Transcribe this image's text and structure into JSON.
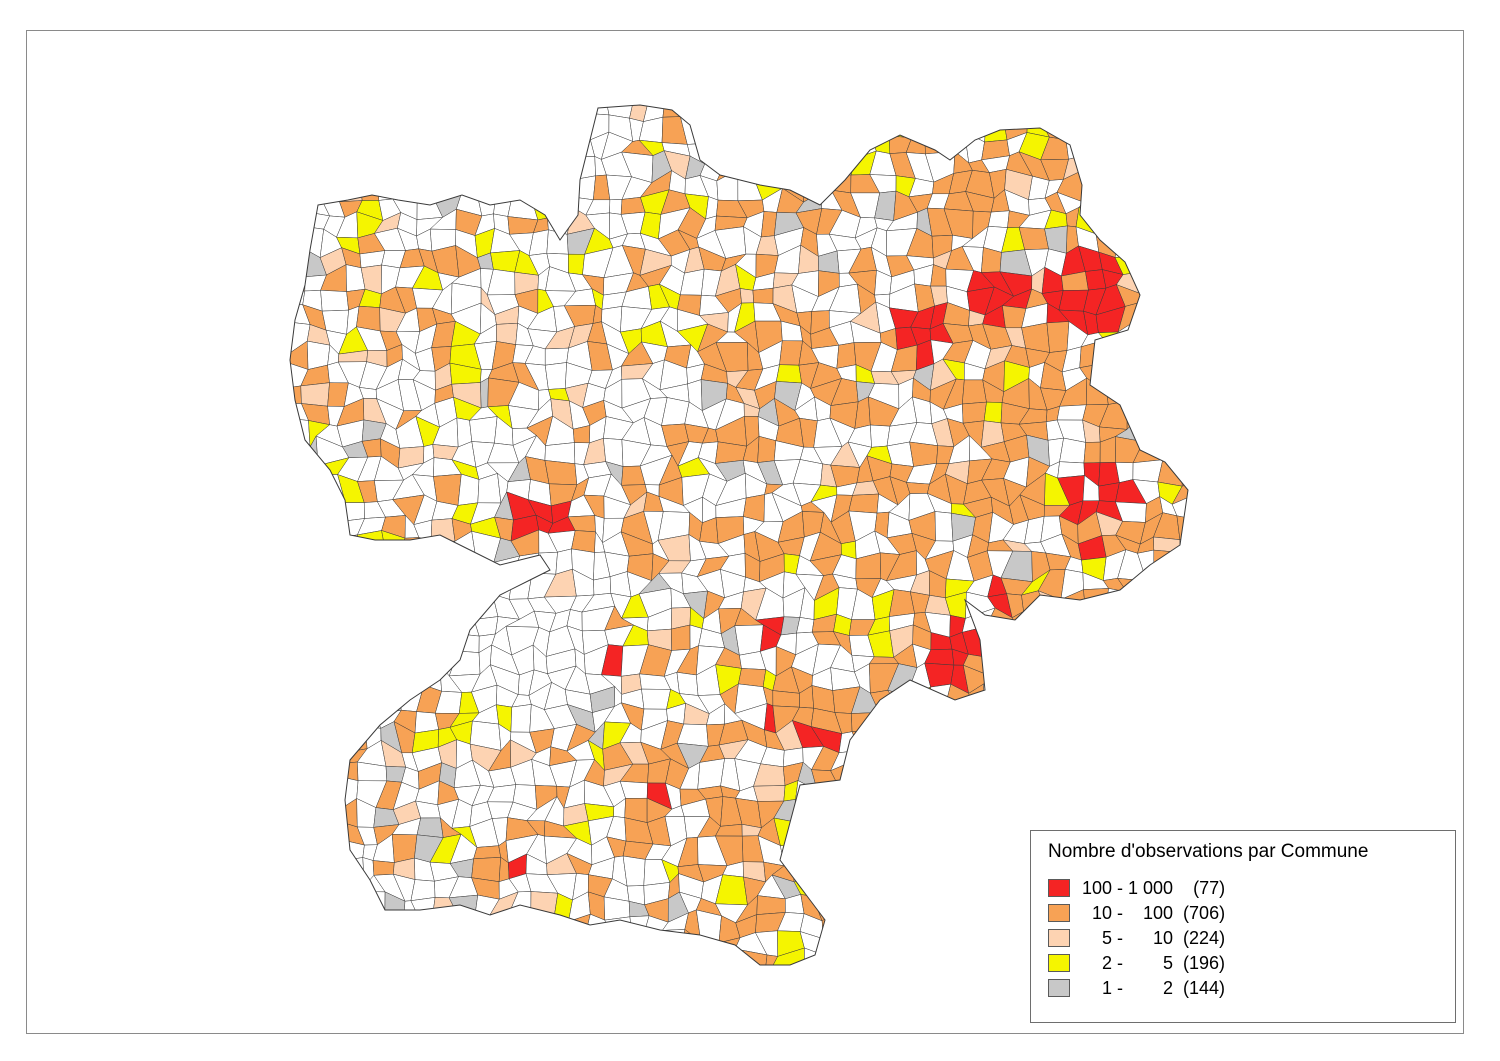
{
  "legend": {
    "title": "Nombre d'observations par Commune",
    "classes": [
      {
        "label": "100 - 1 000    (77)",
        "min": 100,
        "max": 1000,
        "count": 77,
        "color": "#f42424"
      },
      {
        "label": "  10 -    100  (706)",
        "min": 10,
        "max": 100,
        "count": 706,
        "color": "#f7a255"
      },
      {
        "label": "    5 -      10  (224)",
        "min": 5,
        "max": 10,
        "count": 224,
        "color": "#fdd3b2"
      },
      {
        "label": "    2 -        5  (196)",
        "min": 2,
        "max": 5,
        "count": 196,
        "color": "#f5f500"
      },
      {
        "label": "    1 -        2  (144)",
        "min": 1,
        "max": 2,
        "count": 144,
        "color": "#c8c8c8"
      }
    ]
  },
  "colors": {
    "outline": "#3a3a3a",
    "empty_commune": "#ffffff",
    "frame_border": "#8a8a8a"
  }
}
